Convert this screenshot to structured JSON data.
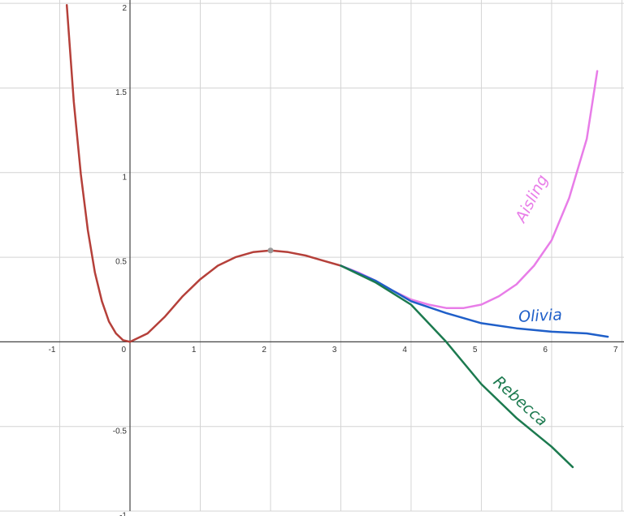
{
  "chart_data": {
    "type": "line",
    "xlim": [
      -1.85,
      7.03
    ],
    "ylim": [
      -1.0,
      2.02
    ],
    "xticks": [
      -1,
      0,
      1,
      2,
      3,
      4,
      5,
      6,
      7
    ],
    "yticks": [
      -1,
      -0.5,
      0.5,
      1,
      1.5,
      2
    ],
    "grid": true,
    "series": [
      {
        "color": "#b5403a",
        "x": [
          -0.9,
          -0.8,
          -0.7,
          -0.6,
          -0.5,
          -0.4,
          -0.3,
          -0.2,
          -0.1,
          0,
          0.25,
          0.5,
          0.75,
          1,
          1.25,
          1.5,
          1.75,
          2,
          2.25,
          2.5,
          2.75,
          3
        ],
        "values": [
          1.99,
          1.42,
          0.99,
          0.66,
          0.41,
          0.24,
          0.12,
          0.05,
          0.01,
          0,
          0.05,
          0.15,
          0.27,
          0.37,
          0.45,
          0.5,
          0.53,
          0.54,
          0.53,
          0.51,
          0.48,
          0.45
        ]
      },
      {
        "name": "Aisling",
        "color": "#e87de8",
        "x": [
          3,
          3.25,
          3.5,
          3.75,
          4,
          4.25,
          4.5,
          4.75,
          5,
          5.25,
          5.5,
          5.75,
          6,
          6.25,
          6.5,
          6.65
        ],
        "values": [
          0.45,
          0.41,
          0.36,
          0.3,
          0.25,
          0.22,
          0.2,
          0.2,
          0.22,
          0.27,
          0.34,
          0.45,
          0.6,
          0.85,
          1.2,
          1.6
        ]
      },
      {
        "name": "Olivia",
        "color": "#1f5fc9",
        "x": [
          3,
          3.5,
          4,
          4.5,
          5,
          5.5,
          6,
          6.5,
          6.8
        ],
        "values": [
          0.45,
          0.36,
          0.24,
          0.17,
          0.11,
          0.08,
          0.06,
          0.05,
          0.03
        ]
      },
      {
        "name": "Rebecca",
        "color": "#1c7a4f",
        "x": [
          3,
          3.5,
          4,
          4.5,
          5,
          5.5,
          6,
          6.3
        ],
        "values": [
          0.45,
          0.35,
          0.22,
          0.0,
          -0.25,
          -0.45,
          -0.62,
          -0.74
        ]
      }
    ],
    "marker": {
      "x": 2,
      "y": 0.54,
      "color": "#999999"
    }
  }
}
